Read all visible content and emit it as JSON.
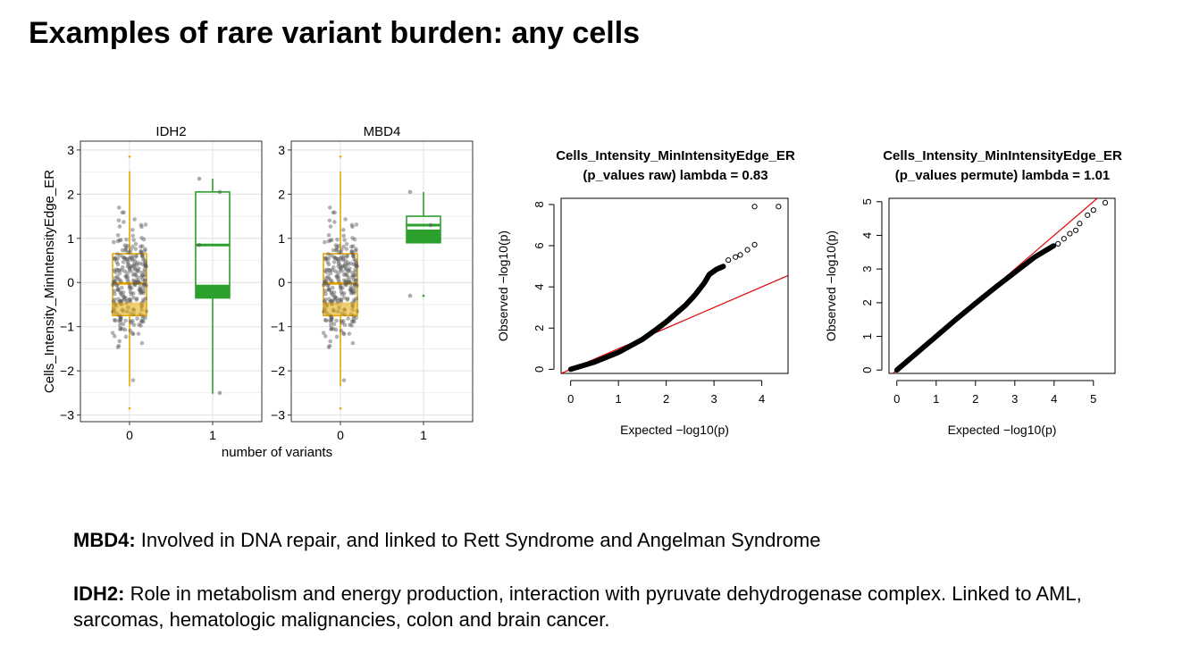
{
  "slide": {
    "title": "Examples of rare variant burden: any cells"
  },
  "colors": {
    "group0": "#E6A800",
    "group1": "#2CA02C",
    "points": "#555555",
    "reference_line": "#E00000",
    "grid": "#E5E5E5"
  },
  "chart_data": [
    {
      "type": "box",
      "title": "IDH2",
      "xlabel": "number of variants",
      "ylabel": "Cells_Intensity_MinIntensityEdge_ER",
      "categories": [
        "0",
        "1"
      ],
      "ylim": [
        -3,
        3
      ],
      "yticks": [
        -3,
        -2,
        -1,
        0,
        1,
        2,
        3
      ],
      "grid": true,
      "boxes": [
        {
          "category": "0",
          "whisker_low": -2.35,
          "q1": -0.75,
          "median": -0.02,
          "q3": 0.65,
          "whisker_high": 2.52,
          "outliers": [
            2.85,
            -2.85
          ]
        },
        {
          "category": "1",
          "whisker_low": -2.52,
          "q1": -0.35,
          "median": 0.85,
          "q3": 2.05,
          "whisker_high": 2.35,
          "outliers": []
        }
      ],
      "points_group1": [
        2.35,
        2.05,
        0.85,
        -2.5
      ]
    },
    {
      "type": "box",
      "title": "MBD4",
      "xlabel": "number of variants",
      "ylabel": "Cells_Intensity_MinIntensityEdge_ER",
      "categories": [
        "0",
        "1"
      ],
      "ylim": [
        -3,
        3
      ],
      "yticks": [
        -3,
        -2,
        -1,
        0,
        1,
        2,
        3
      ],
      "grid": true,
      "boxes": [
        {
          "category": "0",
          "whisker_low": -2.35,
          "q1": -0.75,
          "median": -0.02,
          "q3": 0.65,
          "whisker_high": 2.52,
          "outliers": [
            2.85,
            -2.85
          ]
        },
        {
          "category": "1",
          "whisker_low": 0.9,
          "q1": 0.9,
          "median": 1.3,
          "q3": 1.5,
          "whisker_high": 2.05,
          "outliers": [
            -0.3
          ]
        }
      ],
      "points_group1": [
        2.05,
        1.3,
        -0.3
      ]
    },
    {
      "type": "scatter",
      "title": "Cells_Intensity_MinIntensityEdge_ER\n(p_values raw) lambda = 0.83",
      "title_lines": [
        "Cells_Intensity_MinIntensityEdge_ER",
        "(p_values raw) lambda = 0.83"
      ],
      "xlabel": "Expected  −log10(p)",
      "ylabel": "Observed  −log10(p)",
      "xlim": [
        -0.2,
        4.55
      ],
      "ylim": [
        -0.2,
        8.3
      ],
      "xticks": [
        0,
        1,
        2,
        3,
        4
      ],
      "yticks": [
        0,
        2,
        4,
        6,
        8
      ],
      "reference_line": {
        "from": [
          -0.2,
          -0.2
        ],
        "to": [
          4.55,
          4.55
        ]
      },
      "qq_curve": [
        [
          0,
          0
        ],
        [
          0.5,
          0.35
        ],
        [
          1.0,
          0.82
        ],
        [
          1.5,
          1.45
        ],
        [
          1.8,
          1.95
        ],
        [
          2.0,
          2.3
        ],
        [
          2.2,
          2.7
        ],
        [
          2.4,
          3.1
        ],
        [
          2.6,
          3.6
        ],
        [
          2.8,
          4.2
        ],
        [
          2.9,
          4.6
        ],
        [
          3.05,
          4.85
        ],
        [
          3.2,
          5.0
        ]
      ],
      "tail_points": [
        [
          3.3,
          5.3
        ],
        [
          3.45,
          5.45
        ],
        [
          3.55,
          5.55
        ],
        [
          3.7,
          5.8
        ],
        [
          3.85,
          6.05
        ],
        [
          3.85,
          7.9
        ],
        [
          4.35,
          7.9
        ]
      ]
    },
    {
      "type": "scatter",
      "title": "Cells_Intensity_MinIntensityEdge_ER\n(p_values permute) lambda = 1.01",
      "title_lines": [
        "Cells_Intensity_MinIntensityEdge_ER",
        "(p_values permute) lambda = 1.01"
      ],
      "xlabel": "Expected  −log10(p)",
      "ylabel": "Observed  −log10(p)",
      "xlim": [
        -0.2,
        5.55
      ],
      "ylim": [
        -0.1,
        5.1
      ],
      "xticks": [
        0,
        1,
        2,
        3,
        4,
        5
      ],
      "yticks": [
        0,
        1,
        2,
        3,
        4,
        5
      ],
      "reference_line": {
        "from": [
          -0.1,
          -0.1
        ],
        "to": [
          5.55,
          5.55
        ]
      },
      "qq_curve": [
        [
          0,
          0
        ],
        [
          0.5,
          0.5
        ],
        [
          1.0,
          1.0
        ],
        [
          1.5,
          1.5
        ],
        [
          2.0,
          1.98
        ],
        [
          2.5,
          2.45
        ],
        [
          3.0,
          2.9
        ],
        [
          3.5,
          3.35
        ],
        [
          4.0,
          3.7
        ]
      ],
      "tail_points": [
        [
          4.1,
          3.75
        ],
        [
          4.25,
          3.9
        ],
        [
          4.4,
          4.05
        ],
        [
          4.55,
          4.15
        ],
        [
          4.65,
          4.35
        ],
        [
          4.85,
          4.6
        ],
        [
          5.0,
          4.75
        ],
        [
          5.3,
          4.97
        ]
      ]
    }
  ],
  "notes": [
    {
      "term": "MBD4:",
      "text": " Involved in DNA repair, and linked to Rett Syndrome and Angelman Syndrome"
    },
    {
      "term": "IDH2:",
      "text": " Role in metabolism and energy production, interaction with pyruvate dehydrogenase complex. Linked to AML, sarcomas, hematologic malignancies, colon and brain cancer."
    }
  ]
}
